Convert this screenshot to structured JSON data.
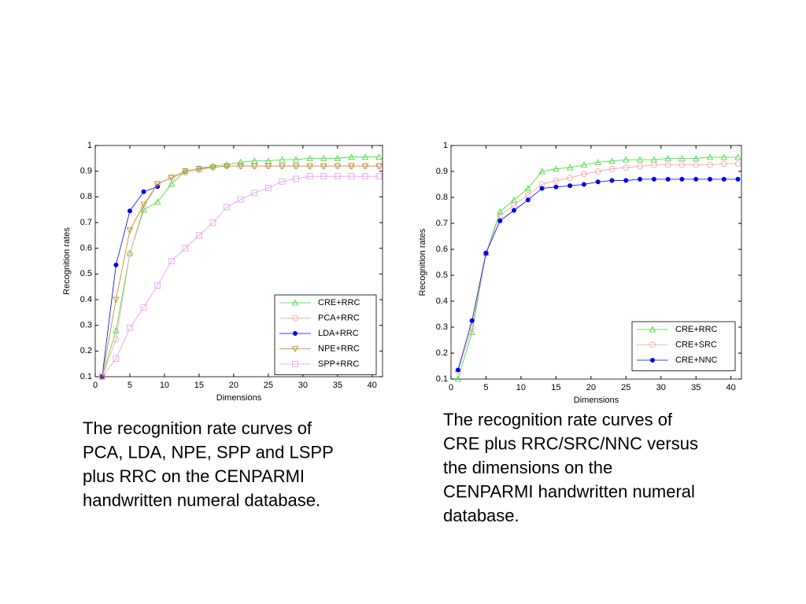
{
  "chart_data": [
    {
      "type": "line",
      "xlabel": "Dimensions",
      "ylabel": "Recognition rates",
      "x": [
        1,
        3,
        5,
        7,
        9,
        11,
        13,
        15,
        17,
        19,
        21,
        23,
        25,
        27,
        29,
        31,
        33,
        35,
        37,
        39,
        41
      ],
      "xlim": [
        0,
        41.5
      ],
      "xticks": [
        0,
        5,
        10,
        15,
        20,
        25,
        30,
        35,
        40
      ],
      "ylim": [
        0.1,
        1
      ],
      "yticks": [
        0.1,
        0.2,
        0.3,
        0.4,
        0.5,
        0.6,
        0.7,
        0.8,
        0.9,
        1
      ],
      "grid": false,
      "legend": "lower right",
      "series": [
        {
          "name": "CRE+RRC",
          "color": "#33dd33",
          "marker": "triangle",
          "values": [
            0.1,
            0.28,
            0.58,
            0.75,
            0.78,
            0.85,
            0.9,
            0.91,
            0.92,
            0.925,
            0.935,
            0.94,
            0.94,
            0.945,
            0.945,
            0.95,
            0.95,
            0.95,
            0.955,
            0.955,
            0.955
          ]
        },
        {
          "name": "PCA+RRC",
          "color": "#f4a0a0",
          "marker": "circle",
          "values": [
            0.1,
            0.245,
            0.58,
            0.76,
            0.85,
            0.875,
            0.895,
            0.905,
            0.915,
            0.92,
            0.92,
            0.92,
            0.92,
            0.92,
            0.92,
            0.92,
            0.92,
            0.92,
            0.92,
            0.92,
            0.92
          ]
        },
        {
          "name": "LDA+RRC",
          "color": "#0000ee",
          "marker": "dot",
          "values": [
            0.1,
            0.535,
            0.745,
            0.82,
            0.84,
            null,
            null,
            null,
            null,
            null,
            null,
            null,
            null,
            null,
            null,
            null,
            null,
            null,
            null,
            null,
            null
          ]
        },
        {
          "name": "NPE+RRC",
          "color": "#b08a1a",
          "marker": "triangle-down",
          "values": [
            0.1,
            0.4,
            0.67,
            0.77,
            0.85,
            0.875,
            0.9,
            0.91,
            0.915,
            0.92,
            0.92,
            0.92,
            0.92,
            0.92,
            0.92,
            0.92,
            0.92,
            0.92,
            0.92,
            0.92,
            0.92
          ]
        },
        {
          "name": "SPP+RRC",
          "color": "#ee99ee",
          "marker": "square",
          "values": [
            0.1,
            0.17,
            0.29,
            0.37,
            0.455,
            0.55,
            0.6,
            0.65,
            0.7,
            0.76,
            0.79,
            0.815,
            0.835,
            0.86,
            0.87,
            0.88,
            0.88,
            0.88,
            0.88,
            0.88,
            0.88
          ]
        }
      ]
    },
    {
      "type": "line",
      "xlabel": "Dimensions",
      "ylabel": "Recognition rates",
      "x": [
        1,
        3,
        5,
        7,
        9,
        11,
        13,
        15,
        17,
        19,
        21,
        23,
        25,
        27,
        29,
        31,
        33,
        35,
        37,
        39,
        41
      ],
      "xlim": [
        0,
        41.5
      ],
      "xticks": [
        0,
        5,
        10,
        15,
        20,
        25,
        30,
        35,
        40
      ],
      "ylim": [
        0.1,
        1
      ],
      "yticks": [
        0.1,
        0.2,
        0.3,
        0.4,
        0.5,
        0.6,
        0.7,
        0.8,
        0.9,
        1
      ],
      "grid": false,
      "legend": "lower right",
      "series": [
        {
          "name": "CRE+RRC",
          "color": "#33dd33",
          "marker": "triangle",
          "values": [
            0.1,
            0.28,
            0.585,
            0.745,
            0.79,
            0.835,
            0.9,
            0.91,
            0.915,
            0.925,
            0.935,
            0.94,
            0.945,
            0.945,
            0.945,
            0.95,
            0.95,
            0.95,
            0.955,
            0.955,
            0.955
          ]
        },
        {
          "name": "CRE+SRC",
          "color": "#f4a0a0",
          "marker": "circle",
          "values": [
            0.13,
            0.3,
            0.585,
            0.73,
            0.77,
            0.81,
            0.85,
            0.865,
            0.875,
            0.89,
            0.9,
            0.91,
            0.915,
            0.92,
            0.925,
            0.925,
            0.925,
            0.925,
            0.925,
            0.93,
            0.93
          ]
        },
        {
          "name": "CRE+NNC",
          "color": "#0000ee",
          "marker": "dot",
          "values": [
            0.135,
            0.325,
            0.585,
            0.71,
            0.75,
            0.79,
            0.835,
            0.84,
            0.845,
            0.85,
            0.86,
            0.865,
            0.865,
            0.87,
            0.87,
            0.87,
            0.87,
            0.87,
            0.87,
            0.87,
            0.87
          ]
        }
      ]
    }
  ],
  "captions": [
    [
      "The recognition rate curves of",
      "PCA, LDA, NPE, SPP and LSPP",
      "plus RRC on the CENPARMI",
      "handwritten numeral database."
    ],
    [
      "The recognition rate curves of",
      "CRE plus RRC/SRC/NNC versus",
      "the dimensions on the",
      "CENPARMI handwritten numeral",
      "database."
    ]
  ]
}
